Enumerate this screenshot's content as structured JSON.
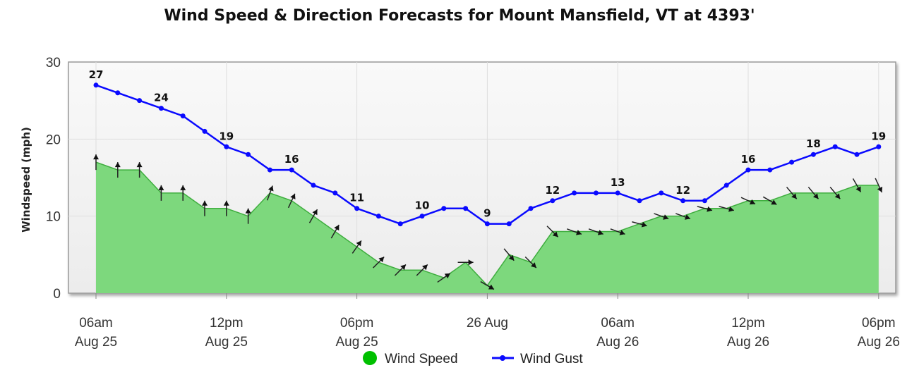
{
  "chart_data": {
    "type": "area",
    "title": "Wind Speed & Direction Forecasts for Mount Mansfield, VT at 4393'",
    "xlabel": "",
    "ylabel": "Windspeed (mph)",
    "ylim": [
      0,
      30
    ],
    "yticks": [
      0,
      10,
      20,
      30
    ],
    "grid": true,
    "legend_position": "bottom",
    "x_tick_labels": [
      {
        "line1": "06am",
        "line2": "Aug 25"
      },
      {
        "line1": "12pm",
        "line2": "Aug 25"
      },
      {
        "line1": "06pm",
        "line2": "Aug 25"
      },
      {
        "line1": "26 Aug",
        "line2": ""
      },
      {
        "line1": "06am",
        "line2": "Aug 26"
      },
      {
        "line1": "12pm",
        "line2": "Aug 26"
      },
      {
        "line1": "06pm",
        "line2": "Aug 26"
      }
    ],
    "x_hours_from_first": [
      0,
      1,
      2,
      3,
      4,
      5,
      6,
      7,
      8,
      9,
      10,
      11,
      12,
      13,
      14,
      15,
      16,
      17,
      18,
      19,
      20,
      21,
      22,
      23,
      24,
      25,
      26,
      27,
      28,
      29,
      30,
      31,
      32,
      33,
      34,
      35,
      36
    ],
    "series": [
      {
        "name": "Wind Speed",
        "color": "#7dd87d",
        "marker_color": "#00c000",
        "values": [
          17,
          16,
          16,
          13,
          13,
          11,
          11,
          10,
          13,
          12,
          10,
          8,
          6,
          4,
          3,
          3,
          2,
          4,
          1,
          5,
          4,
          8,
          8,
          8,
          8,
          9,
          10,
          10,
          11,
          11,
          12,
          12,
          13,
          13,
          13,
          14,
          14
        ],
        "direction_deg": [
          180,
          180,
          180,
          180,
          180,
          180,
          180,
          180,
          200,
          205,
          210,
          210,
          215,
          225,
          225,
          225,
          235,
          270,
          300,
          320,
          315,
          315,
          290,
          290,
          290,
          285,
          290,
          290,
          285,
          285,
          295,
          300,
          320,
          320,
          320,
          330,
          335
        ]
      },
      {
        "name": "Wind Gust",
        "color": "#0a0aff",
        "values": [
          27,
          26,
          25,
          24,
          23,
          21,
          19,
          18,
          16,
          16,
          14,
          13,
          11,
          10,
          9,
          10,
          11,
          11,
          9,
          9,
          11,
          12,
          13,
          13,
          13,
          12,
          13,
          12,
          12,
          14,
          16,
          16,
          17,
          18,
          19,
          18,
          19
        ],
        "labeled_values": [
          {
            "index": 0,
            "text": "27"
          },
          {
            "index": 3,
            "text": "24"
          },
          {
            "index": 6,
            "text": "19"
          },
          {
            "index": 9,
            "text": "16"
          },
          {
            "index": 12,
            "text": "11"
          },
          {
            "index": 15,
            "text": "10"
          },
          {
            "index": 18,
            "text": "9"
          },
          {
            "index": 21,
            "text": "12"
          },
          {
            "index": 24,
            "text": "13"
          },
          {
            "index": 27,
            "text": "12"
          },
          {
            "index": 30,
            "text": "16"
          },
          {
            "index": 33,
            "text": "18"
          },
          {
            "index": 36,
            "text": "19"
          }
        ]
      }
    ]
  }
}
